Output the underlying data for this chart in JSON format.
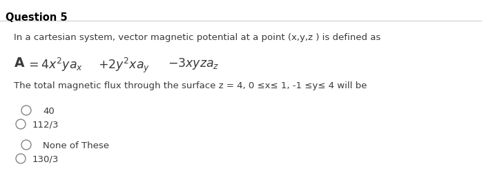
{
  "title": "Question 5",
  "line1": "In a cartesian system, vector magnetic potential at a point (x,y,z ) is defined as",
  "line3": "The total magnetic flux through the surface z = 4, 0 ≤x≤ 1, -1 ≤y≤ 4 will be",
  "options": [
    "40",
    "112/3",
    "None of These",
    "130/3"
  ],
  "option_indent": [
    true,
    false,
    true,
    false
  ],
  "background_color": "#ffffff",
  "text_color": "#3a3a3a",
  "title_color": "#000000",
  "line_color": "#cccccc",
  "circle_color": "#777777",
  "font_size_title": 10.5,
  "font_size_body": 9.5,
  "font_size_eq": 12.5
}
